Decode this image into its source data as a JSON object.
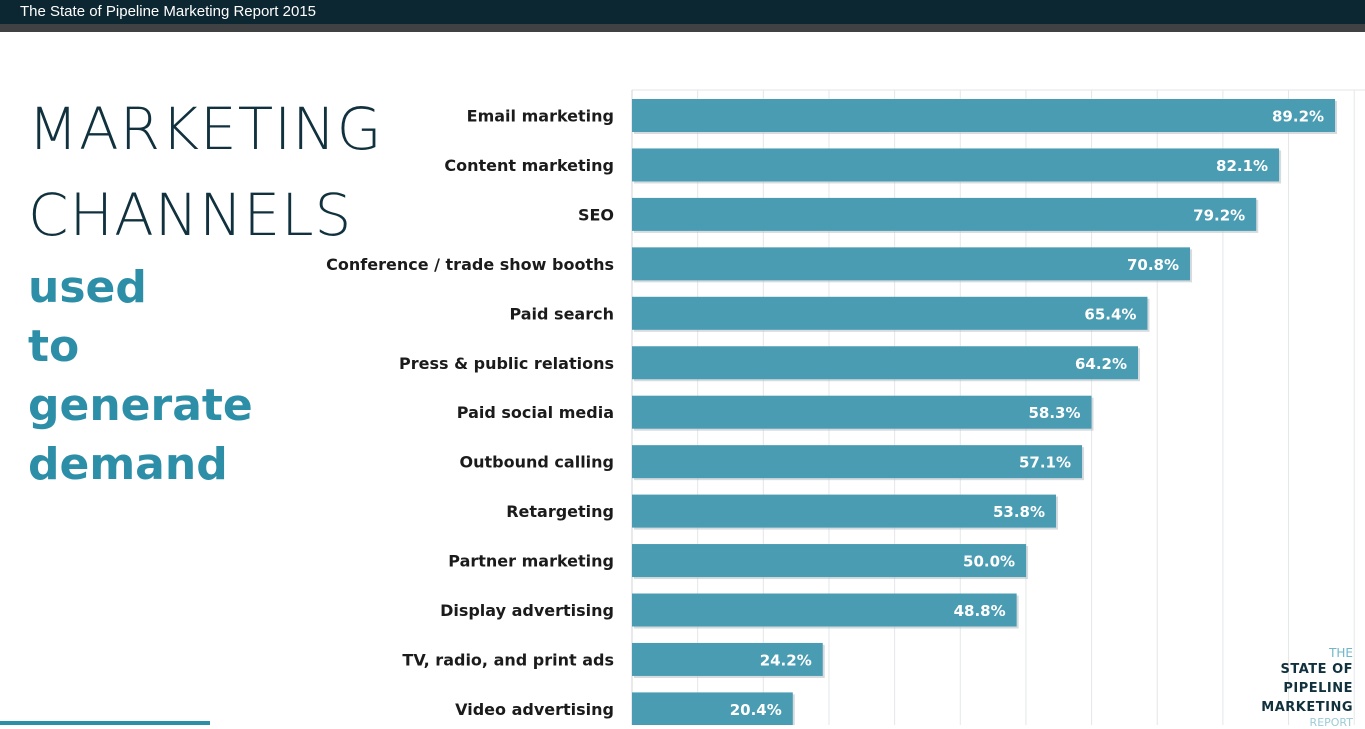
{
  "window": {
    "title": "The State of Pipeline Marketing Report 2015"
  },
  "heading": {
    "line1": "MARKETING",
    "line2": "CHANNELS",
    "line3": "used",
    "line4": "to",
    "line5": "generate",
    "line6": "demand"
  },
  "logo": {
    "the": "THE",
    "line1": "STATE OF",
    "line2": "PIPELINE",
    "line3": "MARKETING",
    "line4": "REPORT"
  },
  "colors": {
    "bar": "#4a9cb3",
    "heading_dark": "#10313d",
    "heading_accent": "#2d8ea8"
  },
  "chart_data": {
    "type": "bar",
    "orientation": "horizontal",
    "categories": [
      "Email marketing",
      "Content marketing",
      "SEO",
      "Conference / trade show booths",
      "Paid search",
      "Press & public relations",
      "Paid social media",
      "Outbound calling",
      "Retargeting",
      "Partner marketing",
      "Display advertising",
      "TV, radio, and print ads",
      "Video advertising"
    ],
    "values": [
      89.2,
      82.1,
      79.2,
      70.8,
      65.4,
      64.2,
      58.3,
      57.1,
      53.8,
      50.0,
      48.8,
      24.2,
      20.4
    ],
    "value_labels": [
      "89.2%",
      "82.1%",
      "79.2%",
      "70.8%",
      "65.4%",
      "64.2%",
      "58.3%",
      "57.1%",
      "53.8%",
      "50.0%",
      "48.8%",
      "24.2%",
      "20.4%"
    ],
    "xlim": [
      0,
      93
    ],
    "grid": true,
    "legend": "none"
  }
}
